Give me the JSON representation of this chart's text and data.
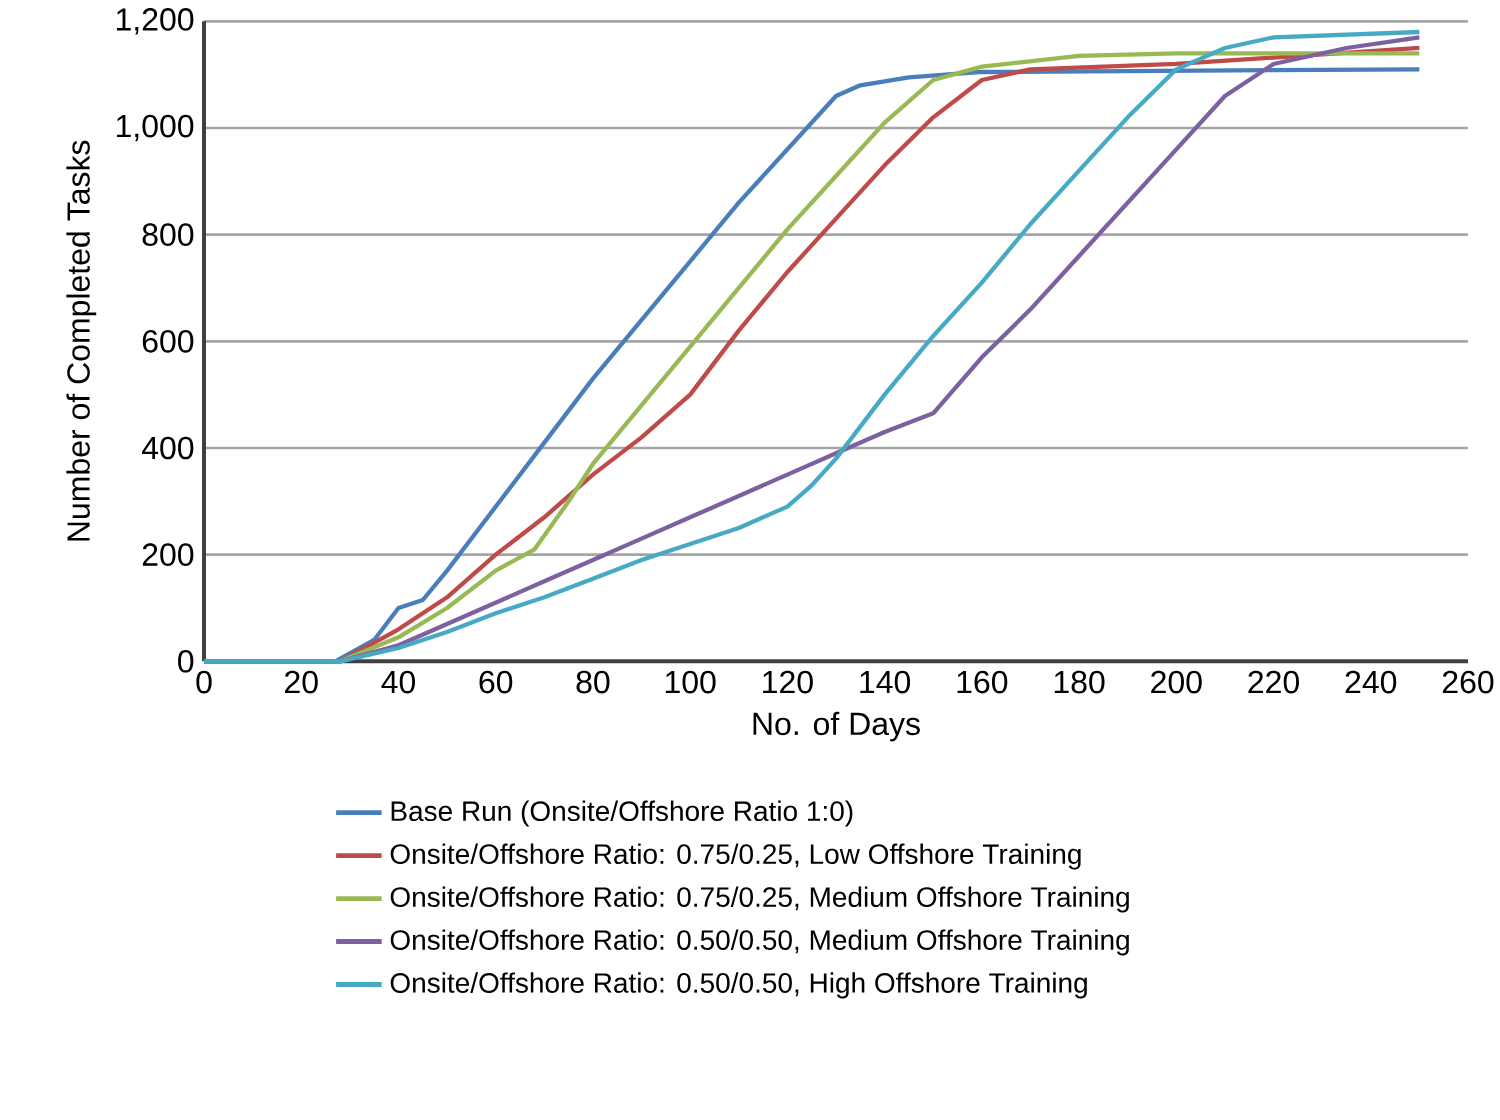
{
  "chart_data": {
    "type": "line",
    "xlabel": "No. of Days",
    "ylabel": "Number of Completed Tasks",
    "xlim": [
      0,
      260
    ],
    "ylim": [
      0,
      1200
    ],
    "xticks": [
      0,
      20,
      40,
      60,
      80,
      100,
      120,
      140,
      160,
      180,
      200,
      220,
      240,
      260
    ],
    "yticks": [
      0,
      200,
      400,
      600,
      800,
      {
        "value": 1000,
        "label": "1,000"
      },
      {
        "value": 1200,
        "label": "1,200"
      }
    ],
    "grid": "y",
    "legend": "bottom",
    "marker": "none",
    "line_style": "solid",
    "series": [
      {
        "name": "Base Run (Onsite/Offshore Ratio 1:0)",
        "color": "#4a7ebb",
        "x": [
          0,
          27,
          35,
          40,
          45,
          50,
          60,
          70,
          80,
          90,
          100,
          110,
          120,
          130,
          135,
          145,
          160,
          250
        ],
        "values": [
          0,
          0,
          40,
          100,
          115,
          170,
          290,
          410,
          530,
          640,
          750,
          860,
          960,
          1060,
          1080,
          1095,
          1105,
          1110
        ]
      },
      {
        "name": "Onsite/Offshore Ratio: 0.75/0.25, Low Offshore Training",
        "color": "#be4b48",
        "x": [
          0,
          28,
          40,
          50,
          60,
          70,
          80,
          90,
          100,
          110,
          120,
          130,
          140,
          150,
          160,
          170,
          200,
          250
        ],
        "values": [
          0,
          0,
          60,
          120,
          200,
          270,
          350,
          420,
          500,
          620,
          730,
          830,
          930,
          1020,
          1090,
          1110,
          1120,
          1150
        ]
      },
      {
        "name": "Onsite/Offshore Ratio: 0.75/0.25, Medium Offshore Training",
        "color": "#98b954",
        "x": [
          0,
          28,
          40,
          50,
          60,
          68,
          75,
          80,
          90,
          100,
          110,
          120,
          130,
          140,
          150,
          160,
          180,
          200,
          250
        ],
        "values": [
          0,
          0,
          45,
          100,
          170,
          210,
          300,
          370,
          480,
          590,
          700,
          810,
          910,
          1010,
          1090,
          1115,
          1135,
          1140,
          1140
        ]
      },
      {
        "name": "Onsite/Offshore Ratio: 0.50/0.50, Medium Offshore Training",
        "color": "#7d60a0",
        "x": [
          0,
          28,
          40,
          50,
          60,
          70,
          80,
          90,
          100,
          110,
          120,
          130,
          140,
          150,
          160,
          170,
          180,
          190,
          200,
          210,
          220,
          235,
          250
        ],
        "values": [
          0,
          0,
          30,
          70,
          110,
          150,
          190,
          230,
          270,
          310,
          350,
          390,
          430,
          465,
          570,
          660,
          760,
          860,
          960,
          1060,
          1120,
          1150,
          1170
        ]
      },
      {
        "name": "Onsite/Offshore Ratio: 0.50/0.50, High Offshore Training",
        "color": "#46aac5",
        "x": [
          0,
          28,
          40,
          50,
          60,
          70,
          80,
          90,
          100,
          110,
          120,
          125,
          130,
          140,
          150,
          160,
          170,
          180,
          190,
          200,
          210,
          220,
          250
        ],
        "values": [
          0,
          0,
          25,
          55,
          90,
          120,
          155,
          190,
          220,
          250,
          290,
          330,
          380,
          500,
          610,
          710,
          820,
          920,
          1020,
          1110,
          1150,
          1170,
          1180
        ]
      }
    ]
  }
}
